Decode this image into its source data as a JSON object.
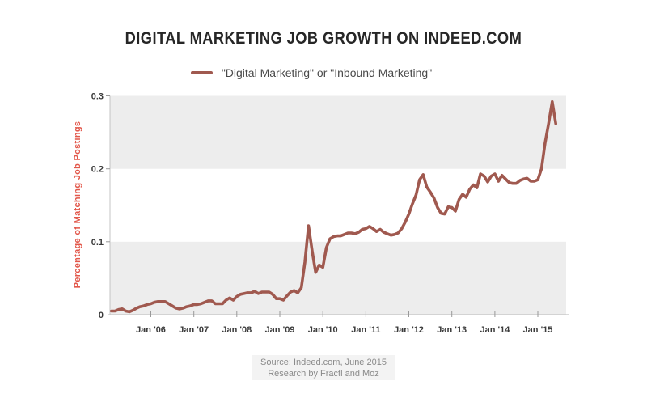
{
  "page": {
    "background": "#ffffff"
  },
  "chart_data": {
    "type": "line",
    "title": "DIGITAL MARKETING JOB GROWTH ON INDEED.COM",
    "legend_label": "\"Digital Marketing\" or \"Inbound Marketing\"",
    "legend_position": "top-center",
    "ylabel": "Percentage of Matching Job Postings",
    "xlabel": "",
    "x_tick_labels": [
      "Jan '06",
      "Jan '07",
      "Jan '08",
      "Jan '09",
      "Jan '10",
      "Jan '11",
      "Jan '12",
      "Jan '13",
      "Jan '14",
      "Jan '15"
    ],
    "y_ticks": [
      0,
      0.1,
      0.2,
      0.3
    ],
    "y_tick_labels": [
      "0",
      "0.1",
      "0.2",
      "0.3"
    ],
    "ylim": [
      0,
      0.3
    ],
    "x_range": [
      "2005-02",
      "2015-06"
    ],
    "interval": "monthly",
    "grid_bands": [
      [
        0,
        0.1
      ],
      [
        0.2,
        0.3
      ]
    ],
    "series": [
      {
        "name": "\"Digital Marketing\" or \"Inbound Marketing\"",
        "start": "2005-02",
        "values": [
          0.005,
          0.005,
          0.007,
          0.008,
          0.005,
          0.004,
          0.006,
          0.009,
          0.011,
          0.012,
          0.014,
          0.015,
          0.017,
          0.018,
          0.018,
          0.018,
          0.015,
          0.012,
          0.009,
          0.008,
          0.009,
          0.011,
          0.012,
          0.014,
          0.014,
          0.015,
          0.017,
          0.019,
          0.019,
          0.015,
          0.015,
          0.015,
          0.02,
          0.023,
          0.02,
          0.025,
          0.028,
          0.029,
          0.03,
          0.03,
          0.032,
          0.029,
          0.031,
          0.031,
          0.031,
          0.028,
          0.022,
          0.022,
          0.02,
          0.026,
          0.031,
          0.033,
          0.03,
          0.037,
          0.072,
          0.122,
          0.088,
          0.058,
          0.068,
          0.065,
          0.092,
          0.104,
          0.107,
          0.108,
          0.108,
          0.11,
          0.112,
          0.112,
          0.111,
          0.113,
          0.117,
          0.118,
          0.121,
          0.118,
          0.114,
          0.117,
          0.113,
          0.111,
          0.109,
          0.11,
          0.112,
          0.118,
          0.127,
          0.138,
          0.152,
          0.164,
          0.185,
          0.192,
          0.175,
          0.168,
          0.16,
          0.147,
          0.139,
          0.138,
          0.148,
          0.147,
          0.142,
          0.158,
          0.165,
          0.161,
          0.172,
          0.178,
          0.174,
          0.193,
          0.19,
          0.182,
          0.19,
          0.193,
          0.183,
          0.191,
          0.186,
          0.181,
          0.18,
          0.18,
          0.184,
          0.186,
          0.187,
          0.183,
          0.183,
          0.185,
          0.2,
          0.235,
          0.262,
          0.292,
          0.262
        ]
      }
    ]
  },
  "footer": {
    "line1": "Source: Indeed.com, June 2015",
    "line2": "Research by Fractl and Moz"
  },
  "colors": {
    "line": "#a0594f",
    "ylabel_text": "#e2574a",
    "band": "#ededed",
    "axis": "#c4c4c4",
    "tick": "#999999",
    "tick_label": "#3b3b3b",
    "title_text": "#262626",
    "legend_text": "#4a4a4a",
    "footer_bg": "#f3f3f3",
    "footer_text": "#8a8a8a"
  }
}
